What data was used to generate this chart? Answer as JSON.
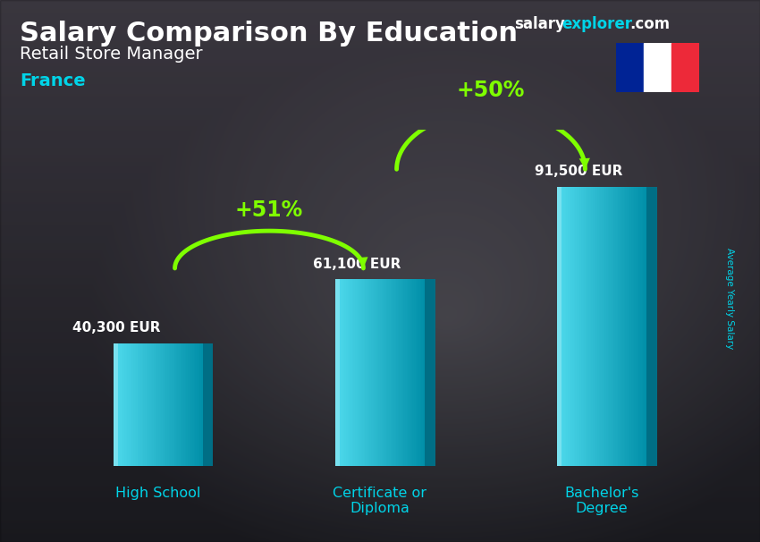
{
  "title": "Salary Comparison By Education",
  "subtitle": "Retail Store Manager",
  "country": "France",
  "categories": [
    "High School",
    "Certificate or\nDiploma",
    "Bachelor's\nDegree"
  ],
  "values": [
    40300,
    61100,
    91500
  ],
  "value_labels": [
    "40,300 EUR",
    "61,100 EUR",
    "91,500 EUR"
  ],
  "pct_labels": [
    "+51%",
    "+50%"
  ],
  "bar_color_main": "#00bcd4",
  "bar_color_light": "#4dd9ec",
  "bar_color_dark": "#007b9e",
  "bar_color_top": "#26c6da",
  "bg_color": "#3a3a4a",
  "title_color": "#ffffff",
  "subtitle_color": "#ffffff",
  "country_color": "#00d4e8",
  "value_color": "#ffffff",
  "pct_color": "#7fff00",
  "arrow_color": "#7fff00",
  "xlabel_color": "#00d4e8",
  "ylabel_text": "Average Yearly Salary",
  "ylabel_color": "#00d4e8",
  "website_salary_color": "#ffffff",
  "website_explorer_color": "#00d4e8",
  "website_com_color": "#ffffff",
  "flag_blue": "#002395",
  "flag_white": "#ffffff",
  "flag_red": "#ED2939",
  "max_val": 110000,
  "bar_width": 0.38,
  "bar_gap": 0.95
}
